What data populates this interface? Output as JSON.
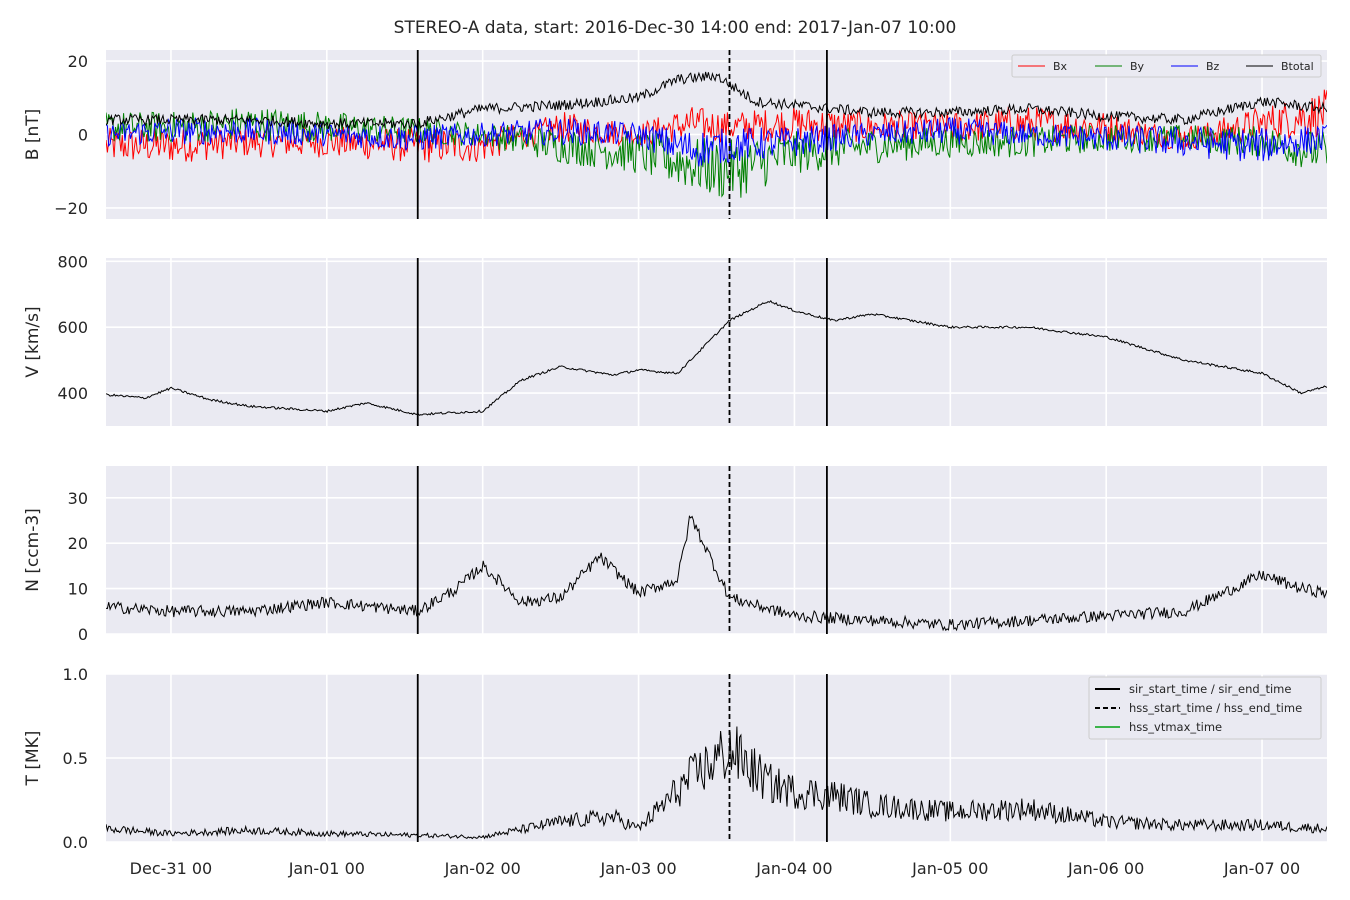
{
  "chart_data": {
    "type": "line",
    "title": "STEREO-A data, start: 2016-Dec-30 14:00  end: 2017-Jan-07 10:00",
    "time_range": [
      "2016-12-30T14:00",
      "2017-01-07T10:00"
    ],
    "x_tick_labels": [
      "Dec-31 00",
      "Jan-01 00",
      "Jan-02 00",
      "Jan-03 00",
      "Jan-04 00",
      "Jan-05 00",
      "Jan-06 00",
      "Jan-07 00"
    ],
    "x_tick_times": [
      "2016-12-31T00:00",
      "2017-01-01T00:00",
      "2017-01-02T00:00",
      "2017-01-03T00:00",
      "2017-01-04T00:00",
      "2017-01-05T00:00",
      "2017-01-06T00:00",
      "2017-01-07T00:00"
    ],
    "event_lines": {
      "sir_start_time": "2017-01-01T14:00",
      "hss_start_time": "2017-01-03T14:00",
      "sir_end_time": "2017-01-04T05:00",
      "hss_vtmax_time": null
    },
    "legend_events": [
      "sir_start_time / sir_end_time",
      "hss_start_time / hss_end_time",
      "hss_vtmax_time"
    ],
    "grid": true,
    "panels": [
      {
        "ylabel": "B [nT]",
        "ylim": [
          -23,
          23
        ],
        "yticks": [
          -20,
          0,
          20
        ],
        "ytick_labels": [
          "−20",
          "0",
          "20"
        ],
        "legend": "top-right",
        "series": [
          {
            "name": "Bx",
            "color": "#ff0000",
            "t": [
              "2016-12-30T14:00",
              "2016-12-31T00:00",
              "2016-12-31T12:00",
              "2017-01-01T00:00",
              "2017-01-01T14:00",
              "2017-01-02T00:00",
              "2017-01-02T12:00",
              "2017-01-03T00:00",
              "2017-01-03T08:00",
              "2017-01-03T14:00",
              "2017-01-04T00:00",
              "2017-01-04T12:00",
              "2017-01-05T00:00",
              "2017-01-05T12:00",
              "2017-01-06T00:00",
              "2017-01-06T12:00",
              "2017-01-07T00:00",
              "2017-01-07T10:00"
            ],
            "values": [
              -3,
              -3,
              -2,
              -2,
              -3,
              -3,
              2,
              0,
              3,
              2,
              3,
              2,
              2,
              3,
              2,
              -1,
              3,
              6
            ]
          },
          {
            "name": "By",
            "color": "#008000",
            "t": [
              "2016-12-30T14:00",
              "2016-12-31T00:00",
              "2016-12-31T12:00",
              "2017-01-01T00:00",
              "2017-01-01T14:00",
              "2017-01-02T00:00",
              "2017-01-02T12:00",
              "2017-01-03T00:00",
              "2017-01-03T08:00",
              "2017-01-03T14:00",
              "2017-01-04T00:00",
              "2017-01-04T12:00",
              "2017-01-05T00:00",
              "2017-01-05T12:00",
              "2017-01-06T00:00",
              "2017-01-06T12:00",
              "2017-01-07T00:00",
              "2017-01-07T10:00"
            ],
            "values": [
              2,
              2,
              3,
              2,
              1,
              0,
              -3,
              -5,
              -8,
              -10,
              -5,
              -3,
              -2,
              -2,
              -1,
              -1,
              -2,
              -5
            ]
          },
          {
            "name": "Bz",
            "color": "#0000ff",
            "t": [
              "2016-12-30T14:00",
              "2016-12-31T00:00",
              "2016-12-31T12:00",
              "2017-01-01T00:00",
              "2017-01-01T14:00",
              "2017-01-02T00:00",
              "2017-01-02T12:00",
              "2017-01-03T00:00",
              "2017-01-03T08:00",
              "2017-01-03T14:00",
              "2017-01-04T00:00",
              "2017-01-04T12:00",
              "2017-01-05T00:00",
              "2017-01-05T12:00",
              "2017-01-06T00:00",
              "2017-01-06T12:00",
              "2017-01-07T00:00",
              "2017-01-07T10:00"
            ],
            "values": [
              0,
              1,
              1,
              0,
              -1,
              0,
              1,
              0,
              -4,
              -3,
              -2,
              0,
              1,
              0,
              -1,
              -2,
              -3,
              -1
            ]
          },
          {
            "name": "Btotal",
            "color": "#000000",
            "t": [
              "2016-12-30T14:00",
              "2016-12-31T00:00",
              "2016-12-31T12:00",
              "2017-01-01T00:00",
              "2017-01-01T14:00",
              "2017-01-02T00:00",
              "2017-01-02T12:00",
              "2017-01-03T00:00",
              "2017-01-03T06:00",
              "2017-01-03T12:00",
              "2017-01-03T18:00",
              "2017-01-04T00:00",
              "2017-01-04T12:00",
              "2017-01-05T00:00",
              "2017-01-05T12:00",
              "2017-01-06T00:00",
              "2017-01-06T12:00",
              "2017-01-07T00:00",
              "2017-01-07T10:00"
            ],
            "values": [
              4,
              4,
              4,
              3,
              3,
              7,
              8,
              10,
              15,
              16,
              9,
              8,
              6,
              6,
              7,
              5,
              4,
              9,
              7
            ]
          }
        ]
      },
      {
        "ylabel": "V [km/s]",
        "ylim": [
          300,
          810
        ],
        "yticks": [
          400,
          600,
          800
        ],
        "ytick_labels": [
          "400",
          "600",
          "800"
        ],
        "series": [
          {
            "name": "V",
            "color": "#000000",
            "t": [
              "2016-12-30T14:00",
              "2016-12-30T20:00",
              "2016-12-31T00:00",
              "2016-12-31T06:00",
              "2016-12-31T12:00",
              "2017-01-01T00:00",
              "2017-01-01T06:00",
              "2017-01-01T14:00",
              "2017-01-02T00:00",
              "2017-01-02T06:00",
              "2017-01-02T12:00",
              "2017-01-02T20:00",
              "2017-01-03T00:00",
              "2017-01-03T06:00",
              "2017-01-03T10:00",
              "2017-01-03T14:00",
              "2017-01-03T20:00",
              "2017-01-04T00:00",
              "2017-01-04T06:00",
              "2017-01-04T12:00",
              "2017-01-05T00:00",
              "2017-01-05T12:00",
              "2017-01-06T00:00",
              "2017-01-06T12:00",
              "2017-01-07T00:00",
              "2017-01-07T06:00",
              "2017-01-07T10:00"
            ],
            "values": [
              395,
              385,
              415,
              380,
              360,
              345,
              370,
              335,
              345,
              440,
              480,
              455,
              470,
              460,
              540,
              620,
              680,
              650,
              620,
              640,
              600,
              600,
              570,
              500,
              460,
              400,
              420
            ]
          }
        ]
      },
      {
        "ylabel": "N [ccm-3]",
        "ylim": [
          0,
          37
        ],
        "yticks": [
          0,
          10,
          20,
          30
        ],
        "ytick_labels": [
          "0",
          "10",
          "20",
          "30"
        ],
        "series": [
          {
            "name": "N",
            "color": "#000000",
            "t": [
              "2016-12-30T14:00",
              "2016-12-31T00:00",
              "2016-12-31T12:00",
              "2017-01-01T00:00",
              "2017-01-01T14:00",
              "2017-01-01T20:00",
              "2017-01-02T00:00",
              "2017-01-02T06:00",
              "2017-01-02T12:00",
              "2017-01-02T18:00",
              "2017-01-03T00:00",
              "2017-01-03T06:00",
              "2017-01-03T08:00",
              "2017-01-03T14:00",
              "2017-01-04T00:00",
              "2017-01-04T12:00",
              "2017-01-05T00:00",
              "2017-01-05T12:00",
              "2017-01-06T00:00",
              "2017-01-06T12:00",
              "2017-01-07T00:00",
              "2017-01-07T06:00",
              "2017-01-07T10:00"
            ],
            "values": [
              6,
              5,
              5,
              7,
              5,
              10,
              15,
              7,
              8,
              17,
              9,
              12,
              26,
              8,
              4,
              3,
              2,
              3,
              4,
              5,
              13,
              10,
              9
            ]
          }
        ]
      },
      {
        "ylabel": "T [MK]",
        "ylim": [
          0,
          1.0
        ],
        "yticks": [
          0.0,
          0.5,
          1.0
        ],
        "ytick_labels": [
          "0.0",
          "0.5",
          "1.0"
        ],
        "legend": "top-right",
        "series": [
          {
            "name": "T",
            "color": "#000000",
            "t": [
              "2016-12-30T14:00",
              "2016-12-31T00:00",
              "2016-12-31T12:00",
              "2017-01-01T00:00",
              "2017-01-01T14:00",
              "2017-01-02T00:00",
              "2017-01-02T12:00",
              "2017-01-02T20:00",
              "2017-01-03T00:00",
              "2017-01-03T08:00",
              "2017-01-03T14:00",
              "2017-01-03T20:00",
              "2017-01-04T00:00",
              "2017-01-04T06:00",
              "2017-01-04T12:00",
              "2017-01-05T00:00",
              "2017-01-05T12:00",
              "2017-01-06T00:00",
              "2017-01-06T12:00",
              "2017-01-07T00:00",
              "2017-01-07T10:00"
            ],
            "values": [
              0.08,
              0.05,
              0.07,
              0.05,
              0.04,
              0.03,
              0.12,
              0.15,
              0.08,
              0.38,
              0.55,
              0.35,
              0.3,
              0.28,
              0.22,
              0.18,
              0.2,
              0.12,
              0.1,
              0.1,
              0.08
            ]
          }
        ]
      }
    ]
  }
}
